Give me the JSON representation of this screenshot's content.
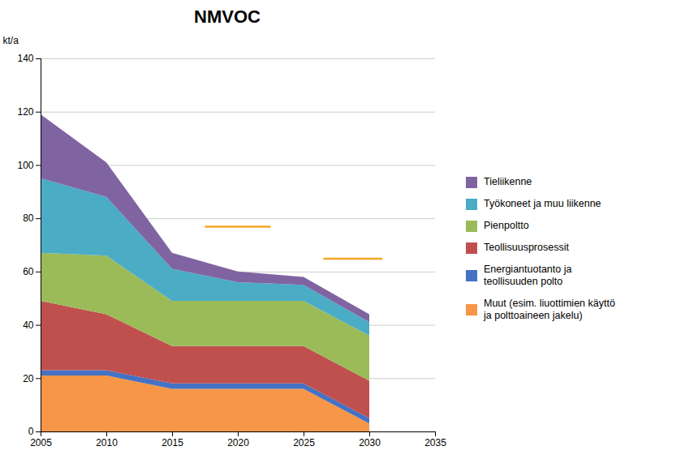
{
  "chart_data": {
    "type": "area",
    "title": "NMVOC",
    "ylabel": "kt/a",
    "stacked": true,
    "x": [
      2005,
      2010,
      2015,
      2020,
      2025,
      2030
    ],
    "series": [
      {
        "name": "Muut (esim. liuottimien käyttö\nja polttoaineen jakelu)",
        "color": "#F79646",
        "values": [
          21,
          21,
          16,
          16,
          16,
          3
        ]
      },
      {
        "name": "Energiantuotanto ja\nteollisuuden polto",
        "color": "#4472C4",
        "values": [
          2,
          2,
          2,
          2,
          2,
          2
        ]
      },
      {
        "name": "Teollisuusprosessit",
        "color": "#C0504D",
        "values": [
          26,
          21,
          14,
          14,
          14,
          14
        ]
      },
      {
        "name": "Pienpoltto",
        "color": "#9BBB59",
        "values": [
          18,
          22,
          17,
          17,
          17,
          17
        ]
      },
      {
        "name": "Työkoneet ja muu liikenne",
        "color": "#4BACC6",
        "values": [
          28,
          22,
          12,
          7,
          6,
          5
        ]
      },
      {
        "name": "Tieliikenne",
        "color": "#8064A2",
        "values": [
          24,
          13,
          6,
          4,
          3,
          3
        ]
      }
    ],
    "reference_lines": [
      {
        "x_start": 2017.5,
        "x_end": 2022.5,
        "y": 77,
        "color": "#F5A623"
      },
      {
        "x_start": 2026.5,
        "x_end": 2031.0,
        "y": 65,
        "color": "#F5A623"
      }
    ],
    "xlim": [
      2005,
      2035
    ],
    "xticks": [
      2005,
      2010,
      2015,
      2020,
      2025,
      2030,
      2035
    ],
    "ylim": [
      0,
      140
    ],
    "yticks": [
      0,
      20,
      40,
      60,
      80,
      100,
      120,
      140
    ],
    "grid": "y",
    "legend": "right"
  }
}
